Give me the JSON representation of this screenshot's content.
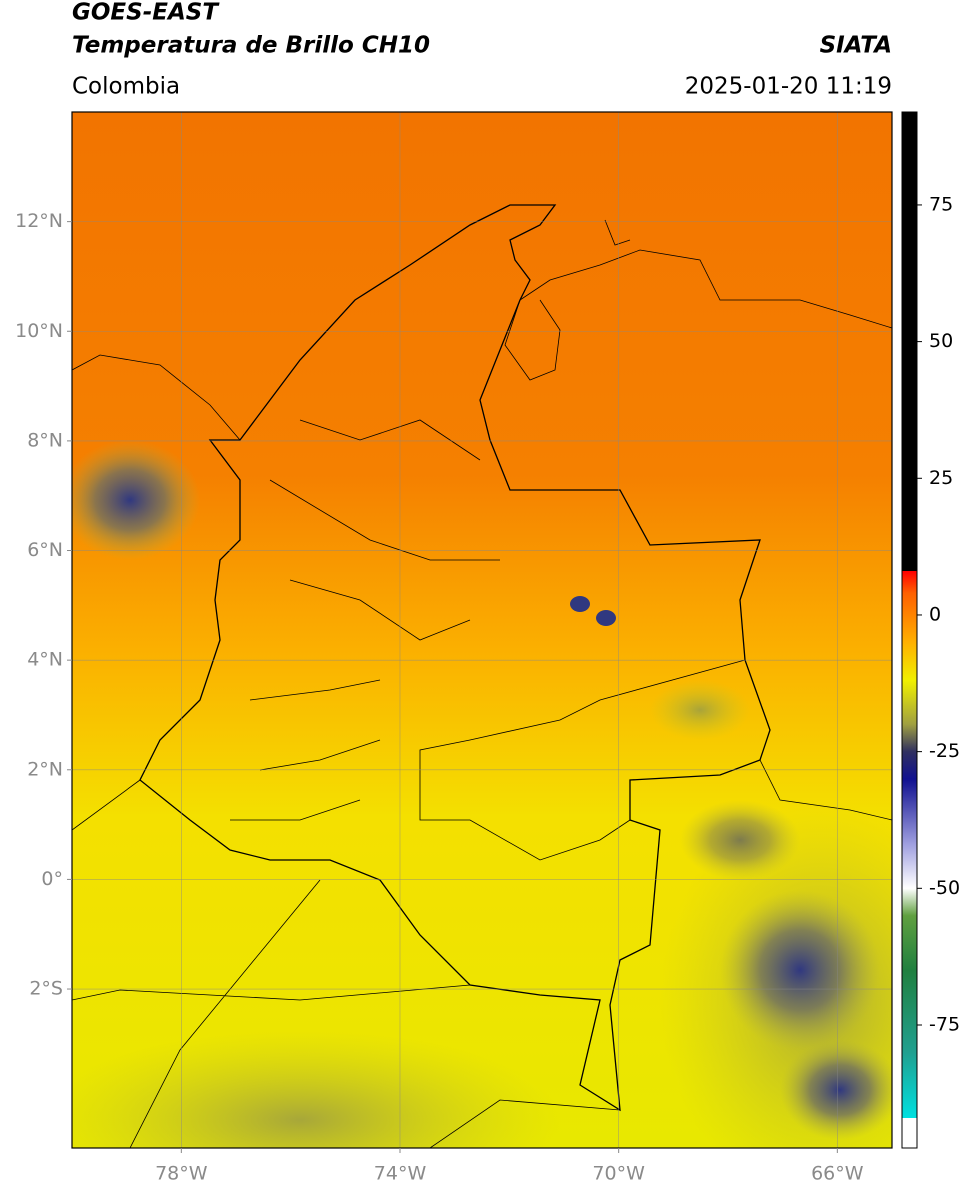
{
  "header": {
    "title_line1": "GOES-EAST",
    "title_line2": "Temperatura de Brillo CH10",
    "source": "SIATA",
    "region": "Colombia",
    "timestamp": "2025-01-20 11:19"
  },
  "map": {
    "xlim": [
      -80,
      -65
    ],
    "ylim": [
      -4.9,
      14
    ],
    "xticks": [
      {
        "value": -78,
        "label": "78°W"
      },
      {
        "value": -74,
        "label": "74°W"
      },
      {
        "value": -70,
        "label": "70°W"
      },
      {
        "value": -66,
        "label": "66°W"
      }
    ],
    "yticks": [
      {
        "value": 12,
        "label": "12°N"
      },
      {
        "value": 10,
        "label": "10°N"
      },
      {
        "value": 8,
        "label": "8°N"
      },
      {
        "value": 6,
        "label": "6°N"
      },
      {
        "value": 4,
        "label": "4°N"
      },
      {
        "value": 2,
        "label": "2°N"
      },
      {
        "value": 0,
        "label": "0°"
      },
      {
        "value": -2,
        "label": "2°S"
      }
    ],
    "grid": true
  },
  "colorbar": {
    "lim": [
      -97.5,
      92
    ],
    "ticks": [
      75,
      50,
      25,
      0,
      -25,
      -50,
      -75
    ],
    "stops": [
      [
        -97.5,
        "#ffffff"
      ],
      [
        -92,
        "#ffffff"
      ],
      [
        -92,
        "#00e0e0"
      ],
      [
        -80,
        "#20a090"
      ],
      [
        -65,
        "#208040"
      ],
      [
        -55,
        "#60a040"
      ],
      [
        -50,
        "#ffffff"
      ],
      [
        -42,
        "#a0a0e0"
      ],
      [
        -30,
        "#101090"
      ],
      [
        -25,
        "#303060"
      ],
      [
        -20,
        "#a0a040"
      ],
      [
        -12,
        "#f0f000"
      ],
      [
        -5,
        "#ffb000"
      ],
      [
        4,
        "#ff6000"
      ],
      [
        8,
        "#ff0000"
      ],
      [
        8,
        "#000000"
      ],
      [
        92,
        "#000000"
      ]
    ]
  }
}
